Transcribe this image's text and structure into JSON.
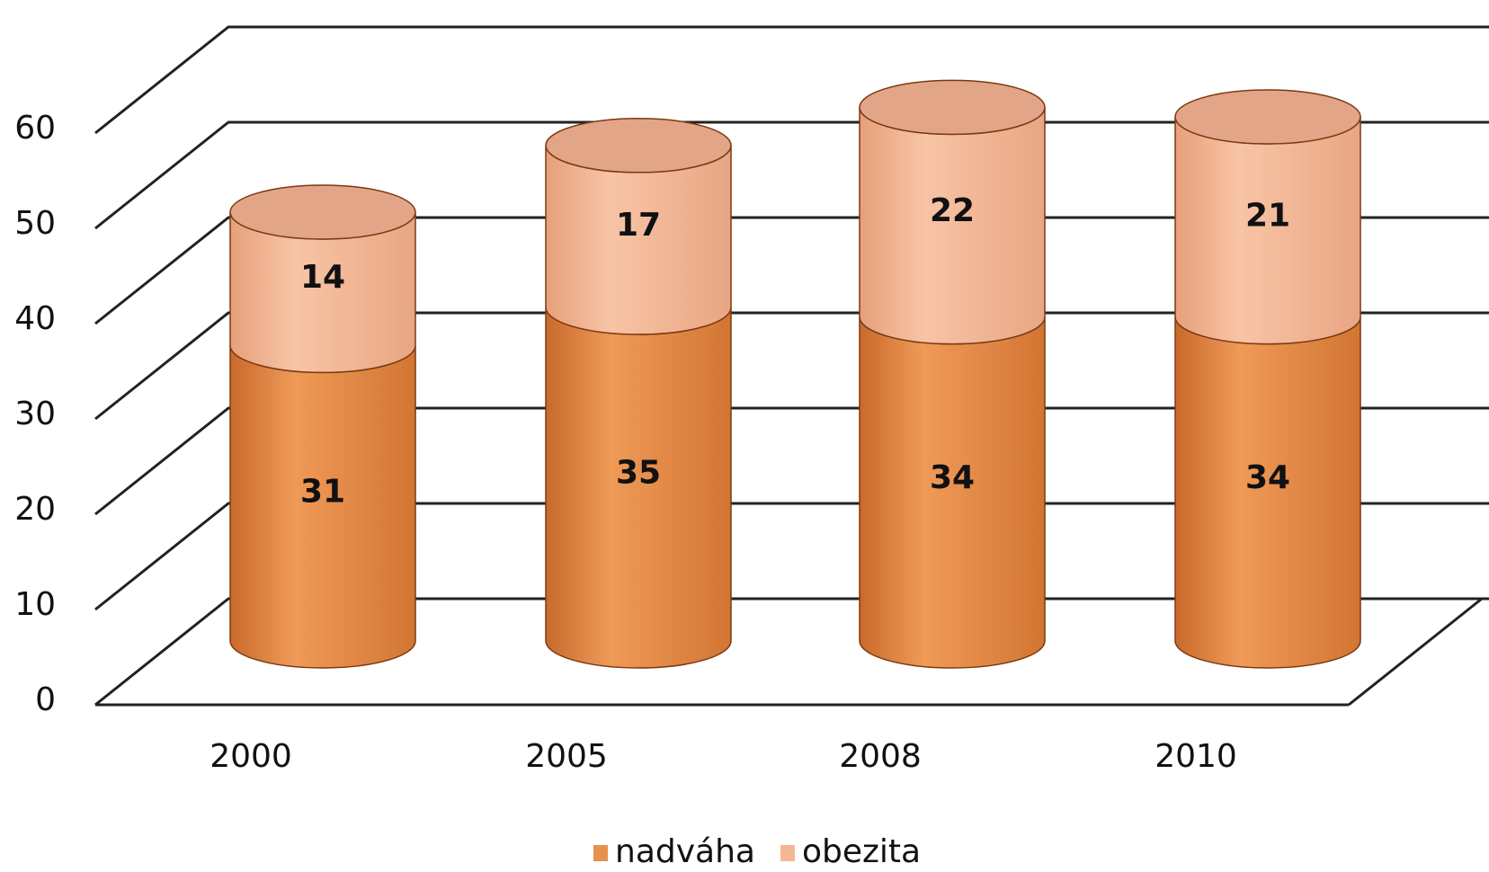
{
  "chart_data": {
    "type": "bar",
    "stacked": true,
    "categories": [
      "2000",
      "2005",
      "2008",
      "2010"
    ],
    "series": [
      {
        "name": "nadváha",
        "color": "#e8914c",
        "values": [
          31,
          35,
          34,
          34
        ]
      },
      {
        "name": "obezita",
        "color": "#f3b795",
        "values": [
          14,
          17,
          22,
          21
        ]
      }
    ],
    "ylim": [
      0,
      70
    ],
    "yticks": [
      0,
      10,
      20,
      30,
      40,
      50,
      60
    ],
    "grid": true,
    "legend": "bottom"
  }
}
